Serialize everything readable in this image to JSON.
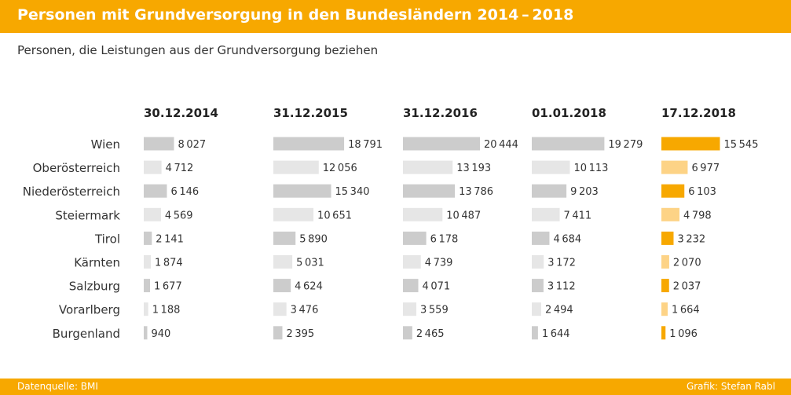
{
  "header": {
    "title": "Personen mit Grundversorgung in den Bundesländern 2014 – 2018"
  },
  "subtitle": "Personen, die Leistungen aus der Grundversorgung beziehen",
  "footer": {
    "source": "Datenquelle: BMI",
    "credit": "Grafik: Stefan Rabl"
  },
  "colors": {
    "accent": "#f7a800",
    "gray_dark": "#cccccc",
    "gray_light": "#e6e6e6",
    "orange_dark": "#f7a800",
    "orange_light": "#fdd386"
  },
  "chart_data": {
    "type": "bar",
    "title": "Personen mit Grundversorgung in den Bundesländern 2014 – 2018",
    "subtitle": "Personen, die Leistungen aus der Grundversorgung beziehen",
    "categories": [
      "Wien",
      "Oberösterreich",
      "Niederösterreich",
      "Steiermark",
      "Tirol",
      "Kärnten",
      "Salzburg",
      "Vorarlberg",
      "Burgenland"
    ],
    "series": [
      {
        "name": "30.12.2014",
        "values": [
          8027,
          4712,
          6146,
          4569,
          2141,
          1874,
          1677,
          1188,
          940
        ]
      },
      {
        "name": "31.12.2015",
        "values": [
          18791,
          12056,
          15340,
          10651,
          5890,
          5031,
          4624,
          3476,
          2395
        ]
      },
      {
        "name": "31.12.2016",
        "values": [
          20444,
          13193,
          13786,
          10487,
          6178,
          4739,
          4071,
          3559,
          2465
        ]
      },
      {
        "name": "01.01.2018",
        "values": [
          19279,
          10113,
          9203,
          7411,
          4684,
          3172,
          3112,
          2494,
          1644
        ]
      },
      {
        "name": "17.12.2018",
        "values": [
          15545,
          6977,
          6103,
          4798,
          3232,
          2070,
          2037,
          1664,
          1096
        ]
      }
    ],
    "value_labels": [
      [
        "8 027",
        "4 712",
        "6 146",
        "4 569",
        "2 141",
        "1 874",
        "1 677",
        "1 188",
        "940"
      ],
      [
        "18 791",
        "12 056",
        "15 340",
        "10 651",
        "5 890",
        "5 031",
        "4 624",
        "3 476",
        "2 395"
      ],
      [
        "20 444",
        "13 193",
        "13 786",
        "10 487",
        "6 178",
        "4 739",
        "4 071",
        "3 559",
        "2 465"
      ],
      [
        "19 279",
        "10 113",
        "9 203",
        "7 411",
        "4 684",
        "3 172",
        "3 112",
        "2 494",
        "1 644"
      ],
      [
        "15 545",
        "6 977",
        "6 103",
        "4 798",
        "3 232",
        "2 070",
        "2 037",
        "1 664",
        "1 096"
      ]
    ],
    "highlight_series": 4,
    "xlim": [
      0,
      20444
    ],
    "legend": "none",
    "grid": false
  }
}
